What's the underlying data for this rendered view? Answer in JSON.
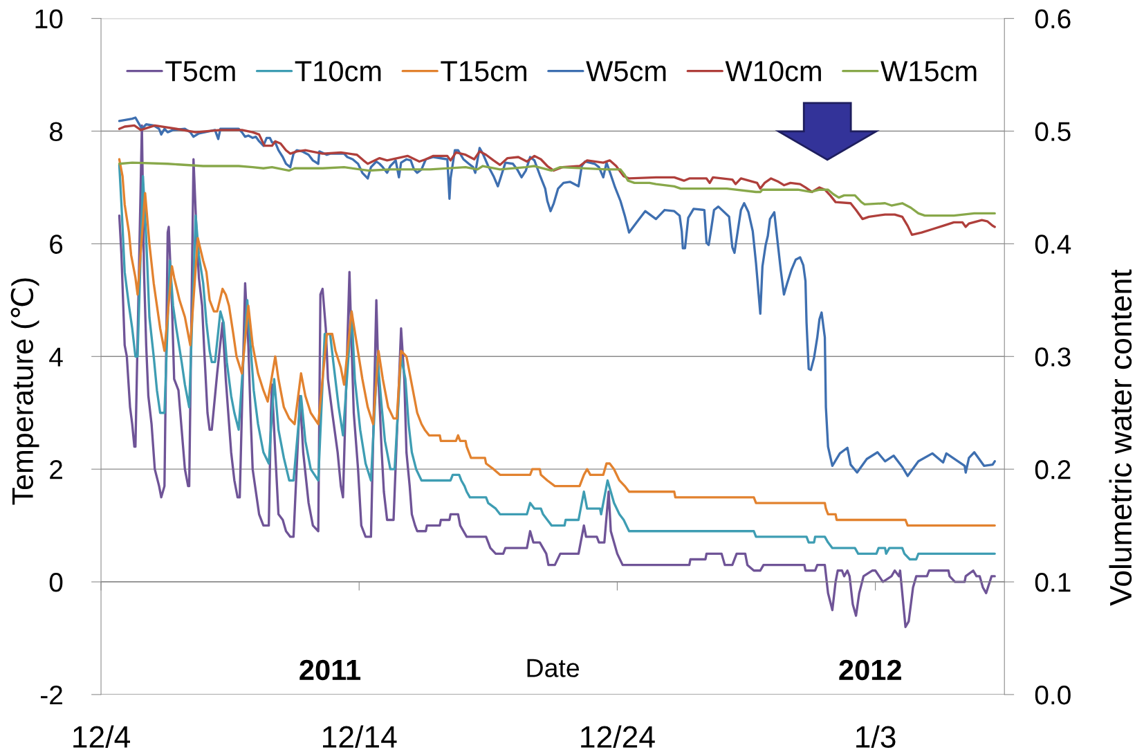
{
  "chart_data": {
    "type": "line",
    "xlabel": "Date",
    "ylabel": "Temperature (℃)",
    "y2label": "Volumetric water content",
    "xlim": [
      "2011-12-04",
      "2012-01-08"
    ],
    "xticks": [
      {
        "value": "2011-12-04",
        "label": "12/4"
      },
      {
        "value": "2011-12-14",
        "label": "12/14"
      },
      {
        "value": "2011-12-24",
        "label": "12/24"
      },
      {
        "value": "2012-01-03",
        "label": "1/3"
      }
    ],
    "ylim": [
      -2,
      10
    ],
    "yticks": [
      -2,
      0,
      2,
      4,
      6,
      8,
      10
    ],
    "y2lim": [
      0,
      0.6
    ],
    "y2ticks": [
      {
        "value": 0,
        "label": "0.0"
      },
      0.1,
      0.2,
      0.3,
      0.4,
      0.5,
      0.6
    ],
    "grid": "y",
    "legend": "top",
    "line_style": "solid",
    "annotations": [
      "2011",
      "2012"
    ],
    "series": [
      {
        "name": "T5cm",
        "color": "#6f5497",
        "x": [
          "2011-12-04T17:00",
          "2011-12-04T19:00",
          "2011-12-04T22:00",
          "2011-12-05T00:00",
          "2011-12-05T03:00",
          "2011-12-05T05:00",
          "2011-12-05T07:00",
          "2011-12-05T08:00",
          "2011-12-05T14:00",
          "2011-12-05T16:00",
          "2011-12-05T18:00",
          "2011-12-05T20:00",
          "2011-12-05T23:00",
          "2011-12-06T02:00",
          "2011-12-06T06:00",
          "2011-12-06T08:00",
          "2011-12-06T11:00",
          "2011-12-06T14:00",
          "2011-12-06T15:00",
          "2011-12-06T18:00",
          "2011-12-06T20:00",
          "2011-12-07T00:00",
          "2011-12-07T03:00",
          "2011-12-07T06:00",
          "2011-12-07T09:00",
          "2011-12-07T10:00",
          "2011-12-07T14:00",
          "2011-12-07T17:00",
          "2011-12-07T19:00",
          "2011-12-07T22:00",
          "2011-12-08T00:00",
          "2011-12-08T03:00",
          "2011-12-08T05:00",
          "2011-12-08T07:00",
          "2011-12-08T12:00",
          "2011-12-08T17:00",
          "2011-12-08T20:00",
          "2011-12-09T01:00",
          "2011-12-09T04:00",
          "2011-12-09T07:00",
          "2011-12-09T09:00",
          "2011-12-09T14:00",
          "2011-12-09T17:00",
          "2011-12-09T19:00",
          "2011-12-09T21:00",
          "2011-12-10T00:00",
          "2011-12-10T03:00",
          "2011-12-10T07:00",
          "2011-12-10T12:00",
          "2011-12-10T14:00",
          "2011-12-10T15:00",
          "2011-12-10T18:00",
          "2011-12-10T21:00",
          "2011-12-11T01:00",
          "2011-12-11T04:00",
          "2011-12-11T08:00",
          "2011-12-11T11:00",
          "2011-12-11T17:00",
          "2011-12-11T20:00",
          "2011-12-12T01:00",
          "2011-12-12T05:00",
          "2011-12-12T10:00",
          "2011-12-12T12:00",
          "2011-12-12T14:00",
          "2011-12-12T17:00",
          "2011-12-12T19:00",
          "2011-12-12T23:00",
          "2011-12-13T04:00",
          "2011-12-13T07:00",
          "2011-12-13T09:00",
          "2011-12-13T15:00",
          "2011-12-13T17:00",
          "2011-12-13T19:00",
          "2011-12-13T23:00",
          "2011-12-14T02:00",
          "2011-12-14T06:00",
          "2011-12-14T11:00",
          "2011-12-14T16:00",
          "2011-12-14T18:00",
          "2011-12-14T21:00",
          "2011-12-14T23:00",
          "2011-12-15T02:00",
          "2011-12-15T08:00",
          "2011-12-15T15:00",
          "2011-12-15T18:00",
          "2011-12-15T20:00",
          "2011-12-15T23:00",
          "2011-12-16T01:00",
          "2011-12-16T04:00",
          "2011-12-16T06:00",
          "2011-12-16T14:00",
          "2011-12-16T15:00",
          "2011-12-17T03:00",
          "2011-12-17T04:00",
          "2011-12-17T12:00",
          "2011-12-17T13:00",
          "2011-12-17T20:00",
          "2011-12-17T22:00",
          "2011-12-18T04:00",
          "2011-12-18T22:00",
          "2011-12-19T02:00",
          "2011-12-19T07:00",
          "2011-12-19T14:00",
          "2011-12-19T16:00",
          "2011-12-20T12:00",
          "2011-12-20T15:00",
          "2011-12-20T18:00",
          "2011-12-21T00:00",
          "2011-12-21T06:00",
          "2011-12-21T08:00",
          "2011-12-21T14:00",
          "2011-12-21T19:00",
          "2011-12-22T12:00",
          "2011-12-22T17:00",
          "2011-12-22T19:00",
          "2011-12-23T05:00",
          "2011-12-23T07:00",
          "2011-12-23T12:00",
          "2011-12-23T16:00",
          "2011-12-23T18:00",
          "2011-12-24T00:00",
          "2011-12-24T05:00",
          "2011-12-26T19:00",
          "2011-12-26T20:00",
          "2011-12-27T10:00",
          "2011-12-27T11:00",
          "2011-12-28T01:00",
          "2011-12-28T04:00",
          "2011-12-28T11:00",
          "2011-12-28T15:00",
          "2011-12-28T23:00",
          "2011-12-29T01:00",
          "2011-12-29T07:00",
          "2011-12-29T13:00",
          "2011-12-29T16:00",
          "2011-12-31T06:00",
          "2011-12-31T07:00",
          "2011-12-31T16:00",
          "2011-12-31T18:00",
          "2012-01-01T01:00",
          "2012-01-01T04:00",
          "2012-01-01T08:00",
          "2012-01-01T11:00",
          "2012-01-01T13:00",
          "2012-01-01T17:00",
          "2012-01-01T19:00",
          "2012-01-01T22:00",
          "2012-01-02T00:00",
          "2012-01-02T03:00",
          "2012-01-02T06:00",
          "2012-01-02T09:00",
          "2012-01-02T13:00",
          "2012-01-02T21:00",
          "2012-01-03T00:00",
          "2012-01-03T07:00",
          "2012-01-03T15:00",
          "2012-01-03T18:00",
          "2012-01-03T22:00",
          "2012-01-03T23:00",
          "2012-01-04T01:00",
          "2012-01-04T04:00",
          "2012-01-04T07:00",
          "2012-01-04T11:00",
          "2012-01-04T14:00",
          "2012-01-05T00:00",
          "2012-01-05T02:00",
          "2012-01-05T20:00",
          "2012-01-05T21:00",
          "2012-01-06T02:00",
          "2012-01-06T11:00",
          "2012-01-06T12:00",
          "2012-01-06T19:00",
          "2012-01-06T22:00",
          "2012-01-07T01:00",
          "2012-01-07T04:00",
          "2012-01-07T07:00",
          "2012-01-07T12:00",
          "2012-01-07T15:00"
        ],
        "values": [
          6.5,
          5.8,
          4.2,
          4.0,
          3.1,
          2.8,
          2.4,
          2.4,
          8.1,
          5.5,
          4.2,
          3.3,
          2.8,
          2.0,
          1.7,
          1.5,
          1.7,
          6.2,
          6.3,
          4.9,
          3.6,
          3.4,
          2.7,
          2.0,
          1.7,
          1.7,
          7.5,
          6.1,
          5.4,
          4.9,
          4.1,
          3.0,
          2.7,
          2.7,
          3.7,
          4.6,
          3.6,
          2.3,
          1.8,
          1.5,
          1.5,
          5.3,
          4.2,
          3.0,
          2.0,
          1.6,
          1.2,
          1.0,
          1.0,
          3.0,
          3.5,
          2.3,
          1.2,
          1.1,
          0.9,
          0.8,
          0.8,
          3.3,
          2.3,
          1.4,
          1.0,
          0.9,
          5.1,
          5.2,
          4.5,
          3.6,
          3.0,
          2.3,
          1.7,
          1.5,
          5.5,
          4.2,
          3.0,
          2.0,
          1.0,
          0.8,
          0.8,
          5.0,
          3.6,
          2.3,
          1.6,
          1.1,
          1.1,
          4.5,
          3.6,
          2.3,
          1.7,
          1.2,
          1.0,
          0.9,
          0.9,
          1.0,
          1.0,
          1.1,
          1.1,
          1.2,
          1.2,
          1.0,
          0.8,
          0.8,
          0.6,
          0.5,
          0.5,
          0.6,
          0.6,
          0.9,
          0.7,
          0.7,
          0.5,
          0.3,
          0.3,
          0.5,
          0.5,
          1.0,
          0.8,
          0.8,
          0.7,
          0.7,
          1.6,
          0.9,
          0.5,
          0.3,
          0.3,
          0.4,
          0.4,
          0.5,
          0.5,
          0.3,
          0.3,
          0.5,
          0.5,
          0.3,
          0.2,
          0.2,
          0.3,
          0.3,
          0.2,
          0.2,
          0.3,
          0.3,
          -0.2,
          -0.5,
          0.0,
          0.2,
          0.2,
          0.1,
          0.2,
          0.1,
          -0.4,
          -0.6,
          -0.2,
          0.1,
          0.2,
          0.2,
          0.0,
          0.1,
          0.2,
          0.1,
          0.2,
          -0.2,
          -0.8,
          -0.7,
          -0.1,
          0.1,
          0.1,
          0.2,
          0.2,
          0.1,
          0.0,
          0.0,
          0.1,
          0.2,
          0.1,
          0.1,
          -0.1,
          -0.2,
          0.1,
          0.1
        ]
      },
      {
        "name": "T10cm",
        "color": "#3e9db3",
        "x": [
          "2011-12-04T17:00",
          "2011-12-04T19:00",
          "2011-12-04T22:00",
          "2011-12-05T02:00",
          "2011-12-05T05:00",
          "2011-12-05T08:00",
          "2011-12-05T10:00",
          "2011-12-05T15:00",
          "2011-12-05T18:00",
          "2011-12-05T21:00",
          "2011-12-06T01:00",
          "2011-12-06T04:00",
          "2011-12-06T07:00",
          "2011-12-06T11:00",
          "2011-12-06T16:00",
          "2011-12-06T19:00",
          "2011-12-06T22:00",
          "2011-12-07T03:00",
          "2011-12-07T06:00",
          "2011-12-07T10:00",
          "2011-12-07T16:00",
          "2011-12-07T19:00",
          "2011-12-07T23:00",
          "2011-12-08T02:00",
          "2011-12-08T05:00",
          "2011-12-08T07:00",
          "2011-12-08T10:00",
          "2011-12-08T15:00",
          "2011-12-08T18:00",
          "2011-12-08T21:00",
          "2011-12-09T01:00",
          "2011-12-09T04:00",
          "2011-12-09T08:00",
          "2011-12-09T16:00",
          "2011-12-09T19:00",
          "2011-12-09T22:00",
          "2011-12-10T02:00",
          "2011-12-10T07:00",
          "2011-12-10T12:00",
          "2011-12-10T17:00",
          "2011-12-10T21:00",
          "2011-12-11T02:00",
          "2011-12-11T07:00",
          "2011-12-11T11:00",
          "2011-12-11T18:00",
          "2011-12-11T22:00",
          "2011-12-12T03:00",
          "2011-12-12T10:00",
          "2011-12-12T16:00",
          "2011-12-12T21:00",
          "2011-12-13T00:00",
          "2011-12-13T05:00",
          "2011-12-13T09:00",
          "2011-12-13T17:00",
          "2011-12-13T20:00",
          "2011-12-14T01:00",
          "2011-12-14T06:00",
          "2011-12-14T11:00",
          "2011-12-14T17:00",
          "2011-12-14T21:00",
          "2011-12-15T00:00",
          "2011-12-15T05:00",
          "2011-12-15T09:00",
          "2011-12-15T15:00",
          "2011-12-15T19:00",
          "2011-12-15T22:00",
          "2011-12-16T01:00",
          "2011-12-16T05:00",
          "2011-12-16T10:00",
          "2011-12-17T13:00",
          "2011-12-17T15:00",
          "2011-12-17T21:00",
          "2011-12-17T23:00",
          "2011-12-18T02:00",
          "2011-12-18T04:00",
          "2011-12-18T07:00",
          "2011-12-18T22:00",
          "2011-12-19T00:00",
          "2011-12-19T07:00",
          "2011-12-19T11:00",
          "2011-12-20T12:00",
          "2011-12-20T15:00",
          "2011-12-20T19:00",
          "2011-12-21T01:00",
          "2011-12-21T03:00",
          "2011-12-21T07:00",
          "2011-12-21T11:00",
          "2011-12-21T23:00",
          "2011-12-22T00:00",
          "2011-12-22T12:00",
          "2011-12-22T17:00",
          "2011-12-22T20:00",
          "2011-12-23T08:00",
          "2011-12-23T09:00",
          "2011-12-23T15:00",
          "2011-12-23T18:00",
          "2011-12-23T21:00",
          "2011-12-24T02:00",
          "2011-12-24T06:00",
          "2011-12-24T11:00",
          "2011-12-29T07:00",
          "2011-12-29T09:00",
          "2011-12-31T08:00",
          "2011-12-31T10:00",
          "2011-12-31T15:00",
          "2011-12-31T16:00",
          "2012-01-01T01:00",
          "2012-01-01T04:00",
          "2012-01-01T08:00",
          "2012-01-02T05:00",
          "2012-01-02T08:00",
          "2012-01-03T01:00",
          "2012-01-03T03:00",
          "2012-01-03T09:00",
          "2012-01-03T10:00",
          "2012-01-03T13:00",
          "2012-01-04T01:00",
          "2012-01-04T03:00",
          "2012-01-04T08:00",
          "2012-01-04T14:00",
          "2012-01-04T16:00",
          "2012-01-07T15:00"
        ],
        "values": [
          7.4,
          6.7,
          5.5,
          4.9,
          4.5,
          4.0,
          4.0,
          7.2,
          6.1,
          4.7,
          4.0,
          3.4,
          3.0,
          3.0,
          5.7,
          4.9,
          4.5,
          3.9,
          3.5,
          3.1,
          6.5,
          5.8,
          5.3,
          4.6,
          4.1,
          3.9,
          3.9,
          4.8,
          4.6,
          3.9,
          3.3,
          3.0,
          2.7,
          5.0,
          4.2,
          3.4,
          2.8,
          2.3,
          2.1,
          3.6,
          2.7,
          2.2,
          1.8,
          1.8,
          3.3,
          2.5,
          2.0,
          1.8,
          4.4,
          4.4,
          3.9,
          3.1,
          2.6,
          4.8,
          3.6,
          2.7,
          2.1,
          1.8,
          4.0,
          3.1,
          2.5,
          2.0,
          2.0,
          4.0,
          3.6,
          2.8,
          2.3,
          2.0,
          1.8,
          1.8,
          1.9,
          1.9,
          1.8,
          1.7,
          1.6,
          1.5,
          1.5,
          1.4,
          1.3,
          1.2,
          1.2,
          1.4,
          1.3,
          1.3,
          1.2,
          1.1,
          1.0,
          1.0,
          1.1,
          1.1,
          1.6,
          1.3,
          1.3,
          1.2,
          1.8,
          1.6,
          1.4,
          1.2,
          1.1,
          0.9,
          0.9,
          0.8,
          0.8,
          0.7,
          0.7,
          0.8,
          0.8,
          0.7,
          0.6,
          0.6,
          0.5,
          0.5,
          0.6,
          0.6,
          0.5,
          0.6,
          0.6,
          0.5,
          0.4,
          0.4,
          0.5,
          0.5
        ]
      },
      {
        "name": "T15cm",
        "color": "#e2822f",
        "x": [
          "2011-12-04T17:00",
          "2011-12-04T20:00",
          "2011-12-04T22:00",
          "2011-12-05T02:00",
          "2011-12-05T04:00",
          "2011-12-05T08:00",
          "2011-12-05T10:00",
          "2011-12-05T17:00",
          "2011-12-05T21:00",
          "2011-12-06T01:00",
          "2011-12-06T04:00",
          "2011-12-06T07:00",
          "2011-12-06T11:00",
          "2011-12-06T18:00",
          "2011-12-06T20:00",
          "2011-12-07T01:00",
          "2011-12-07T06:00",
          "2011-12-07T10:00",
          "2011-12-07T11:00",
          "2011-12-07T18:00",
          "2011-12-07T23:00",
          "2011-12-08T02:00",
          "2011-12-08T05:00",
          "2011-12-08T09:00",
          "2011-12-08T12:00",
          "2011-12-08T17:00",
          "2011-12-08T20:00",
          "2011-12-08T23:00",
          "2011-12-09T03:00",
          "2011-12-09T06:00",
          "2011-12-09T11:00",
          "2011-12-09T17:00",
          "2011-12-09T21:00",
          "2011-12-10T02:00",
          "2011-12-10T07:00",
          "2011-12-10T11:00",
          "2011-12-10T18:00",
          "2011-12-10T21:00",
          "2011-12-11T02:00",
          "2011-12-11T07:00",
          "2011-12-11T12:00",
          "2011-12-11T18:00",
          "2011-12-11T22:00",
          "2011-12-12T03:00",
          "2011-12-12T10:00",
          "2011-12-12T18:00",
          "2011-12-12T23:00",
          "2011-12-13T02:00",
          "2011-12-13T07:00",
          "2011-12-13T10:00",
          "2011-12-13T17:00",
          "2011-12-13T22:00",
          "2011-12-14T03:00",
          "2011-12-14T08:00",
          "2011-12-14T13:00",
          "2011-12-14T18:00",
          "2011-12-14T22:00",
          "2011-12-15T03:00",
          "2011-12-15T08:00",
          "2011-12-15T11:00",
          "2011-12-15T15:00",
          "2011-12-15T20:00",
          "2011-12-16T00:00",
          "2011-12-16T03:00",
          "2011-12-16T06:00",
          "2011-12-16T10:00",
          "2011-12-16T13:00",
          "2011-12-16T17:00",
          "2011-12-17T03:00",
          "2011-12-17T04:00",
          "2011-12-17T18:00",
          "2011-12-17T20:00",
          "2011-12-17T22:00",
          "2011-12-18T03:00",
          "2011-12-18T04:00",
          "2011-12-18T08:00",
          "2011-12-18T21:00",
          "2011-12-18T22:00",
          "2011-12-19T05:00",
          "2011-12-19T11:00",
          "2011-12-20T15:00",
          "2011-12-20T17:00",
          "2011-12-21T00:00",
          "2011-12-21T01:00",
          "2011-12-21T07:00",
          "2011-12-21T14:00",
          "2011-12-22T13:00",
          "2011-12-22T17:00",
          "2011-12-22T20:00",
          "2011-12-22T23:00",
          "2011-12-23T11:00",
          "2011-12-23T14:00",
          "2011-12-23T17:00",
          "2011-12-23T21:00",
          "2011-12-24T02:00",
          "2011-12-24T07:00",
          "2011-12-24T11:00",
          "2011-12-26T05:00",
          "2011-12-26T06:00",
          "2011-12-29T07:00",
          "2011-12-29T09:00",
          "2012-01-01T01:00",
          "2012-01-01T02:00",
          "2012-01-01T04:00",
          "2012-01-01T11:00",
          "2012-01-01T12:00",
          "2012-01-04T04:00",
          "2012-01-04T06:00",
          "2012-01-07T15:00"
        ],
        "values": [
          7.5,
          7.2,
          6.7,
          6.2,
          5.8,
          5.4,
          5.1,
          6.9,
          6.0,
          5.3,
          4.9,
          4.5,
          4.1,
          5.6,
          5.4,
          5.0,
          4.7,
          4.3,
          4.2,
          6.1,
          5.7,
          5.5,
          5.0,
          4.8,
          4.8,
          5.2,
          5.1,
          4.9,
          4.4,
          4.0,
          3.7,
          4.9,
          4.2,
          3.7,
          3.4,
          3.2,
          4.0,
          3.6,
          3.1,
          2.9,
          2.8,
          3.7,
          3.3,
          3.0,
          2.8,
          4.4,
          4.4,
          4.1,
          3.8,
          3.5,
          4.8,
          4.2,
          3.6,
          3.1,
          2.8,
          4.1,
          3.6,
          3.1,
          2.9,
          2.9,
          4.1,
          4.0,
          3.6,
          3.3,
          3.0,
          2.8,
          2.7,
          2.6,
          2.6,
          2.5,
          2.5,
          2.6,
          2.5,
          2.5,
          2.4,
          2.2,
          2.2,
          2.1,
          2.0,
          1.9,
          1.9,
          2.0,
          2.0,
          1.9,
          1.8,
          1.7,
          1.7,
          1.9,
          2.0,
          1.9,
          1.9,
          2.1,
          2.1,
          2.0,
          1.8,
          1.7,
          1.6,
          1.6,
          1.5,
          1.5,
          1.4,
          1.4,
          1.3,
          1.2,
          1.2,
          1.1,
          1.1,
          1.0,
          1.0
        ]
      },
      {
        "name": "W5cm",
        "color": "#3e6fb0",
        "axis": "y2",
        "x": [
          "2011-12-04T17:00",
          "2011-12-05T05:00",
          "2011-12-05T08:00",
          "2011-12-05T11:00",
          "2011-12-05T14:00",
          "2011-12-05T18:00",
          "2011-12-06T01:00",
          "2011-12-06T06:00",
          "2011-12-06T08:00",
          "2011-12-06T11:00",
          "2011-12-06T14:00",
          "2011-12-06T19:00",
          "2011-12-07T06:00",
          "2011-12-07T11:00",
          "2011-12-07T14:00",
          "2011-12-07T19:00",
          "2011-12-08T05:00",
          "2011-12-08T10:00",
          "2011-12-08T13:00",
          "2011-12-08T15:00",
          "2011-12-08T22:00",
          "2011-12-09T08:00",
          "2011-12-09T11:00",
          "2011-12-09T14:00",
          "2011-12-09T17:00",
          "2011-12-09T21:00",
          "2011-12-10T00:00",
          "2011-12-10T03:00",
          "2011-12-10T07:00",
          "2011-12-10T10:00",
          "2011-12-10T13:00",
          "2011-12-10T15:00",
          "2011-12-10T18:00",
          "2011-12-10T21:00",
          "2011-12-11T01:00",
          "2011-12-11T04:00",
          "2011-12-11T08:00",
          "2011-12-11T11:00",
          "2011-12-11T14:00",
          "2011-12-11T19:00",
          "2011-12-12T01:00",
          "2011-12-12T05:00",
          "2011-12-12T10:00",
          "2011-12-12T11:00",
          "2011-12-12T18:00",
          "2011-12-12T21:00",
          "2011-12-13T10:00",
          "2011-12-13T13:00",
          "2011-12-13T18:00",
          "2011-12-13T23:00",
          "2011-12-14T03:00",
          "2011-12-14T08:00",
          "2011-12-14T11:00",
          "2011-12-14T16:00",
          "2011-12-14T19:00",
          "2011-12-14T22:00",
          "2011-12-15T02:00",
          "2011-12-15T05:00",
          "2011-12-15T10:00",
          "2011-12-15T13:00",
          "2011-12-15T15:00",
          "2011-12-15T20:00",
          "2011-12-16T00:00",
          "2011-12-16T03:00",
          "2011-12-16T06:00",
          "2011-12-16T10:00",
          "2011-12-16T14:00",
          "2011-12-16T21:00",
          "2011-12-17T10:00",
          "2011-12-17T12:00",
          "2011-12-17T13:00",
          "2011-12-17T17:00",
          "2011-12-17T20:00",
          "2011-12-18T01:00",
          "2011-12-18T06:00",
          "2011-12-18T10:00",
          "2011-12-18T12:00",
          "2011-12-18T16:00",
          "2011-12-18T19:00",
          "2011-12-19T00:00",
          "2011-12-19T05:00",
          "2011-12-19T09:00",
          "2011-12-19T13:00",
          "2011-12-19T16:00",
          "2011-12-19T23:00",
          "2011-12-20T03:00",
          "2011-12-20T07:00",
          "2011-12-20T11:00",
          "2011-12-20T15:00",
          "2011-12-20T19:00",
          "2011-12-21T00:00",
          "2011-12-21T05:00",
          "2011-12-21T07:00",
          "2011-12-21T10:00",
          "2011-12-21T13:00",
          "2011-12-21T17:00",
          "2011-12-21T22:00",
          "2011-12-22T04:00",
          "2011-12-22T12:00",
          "2011-12-22T15:00",
          "2011-12-22T18:00",
          "2011-12-23T03:00",
          "2011-12-23T07:00",
          "2011-12-23T11:00",
          "2011-12-23T14:00",
          "2011-12-23T17:00",
          "2011-12-23T22:00",
          "2011-12-24T03:00",
          "2011-12-24T07:00",
          "2011-12-24T11:00",
          "2011-12-24T18:00",
          "2011-12-25T02:00",
          "2011-12-25T12:00",
          "2011-12-25T20:00",
          "2011-12-26T05:00",
          "2011-12-26T10:00",
          "2011-12-26T12:00",
          "2011-12-26T13:00",
          "2011-12-26T15:00",
          "2011-12-26T18:00",
          "2011-12-26T23:00",
          "2011-12-27T09:00",
          "2011-12-27T11:00",
          "2011-12-27T13:00",
          "2011-12-27T15:00",
          "2011-12-27T18:00",
          "2011-12-27T22:00",
          "2011-12-28T08:00",
          "2011-12-28T11:00",
          "2011-12-28T13:00",
          "2011-12-28T19:00",
          "2011-12-28T22:00",
          "2011-12-29T02:00",
          "2011-12-29T06:00",
          "2011-12-29T09:00",
          "2011-12-29T13:00",
          "2011-12-29T15:00",
          "2011-12-29T18:00",
          "2011-12-29T20:00",
          "2011-12-29T22:00",
          "2011-12-30T02:00",
          "2011-12-30T04:00",
          "2011-12-30T08:00",
          "2011-12-30T11:00",
          "2011-12-30T14:00",
          "2011-12-30T18:00",
          "2011-12-30T22:00",
          "2011-12-31T02:00",
          "2011-12-31T05:00",
          "2011-12-31T07:00",
          "2011-12-31T08:00",
          "2011-12-31T10:00",
          "2011-12-31T12:00",
          "2011-12-31T15:00",
          "2011-12-31T18:00",
          "2011-12-31T20:00",
          "2011-12-31T22:00",
          "2012-01-01T01:00",
          "2012-01-01T02:00",
          "2012-01-01T04:00",
          "2012-01-01T08:00",
          "2012-01-01T15:00",
          "2012-01-01T22:00",
          "2012-01-02T01:00",
          "2012-01-02T07:00",
          "2012-01-02T16:00",
          "2012-01-03T02:00",
          "2012-01-03T09:00",
          "2012-01-03T17:00",
          "2012-01-04T01:00",
          "2012-01-04T06:00",
          "2012-01-04T16:00",
          "2012-01-05T05:00",
          "2012-01-05T15:00",
          "2012-01-05T18:00",
          "2012-01-06T11:00",
          "2012-01-06T12:00",
          "2012-01-06T15:00",
          "2012-01-06T20:00",
          "2012-01-07T05:00",
          "2012-01-07T13:00",
          "2012-01-07T15:00"
        ],
        "values": [
          0.509,
          0.511,
          0.512,
          0.507,
          0.502,
          0.506,
          0.505,
          0.502,
          0.497,
          0.502,
          0.499,
          0.501,
          0.502,
          0.499,
          0.495,
          0.498,
          0.5,
          0.501,
          0.493,
          0.502,
          0.502,
          0.502,
          0.499,
          0.495,
          0.496,
          0.494,
          0.495,
          0.491,
          0.487,
          0.494,
          0.494,
          0.49,
          0.49,
          0.483,
          0.477,
          0.471,
          0.468,
          0.48,
          0.483,
          0.482,
          0.479,
          0.474,
          0.471,
          0.482,
          0.479,
          0.48,
          0.48,
          0.477,
          0.475,
          0.471,
          0.463,
          0.458,
          0.468,
          0.473,
          0.471,
          0.468,
          0.463,
          0.469,
          0.474,
          0.459,
          0.472,
          0.475,
          0.474,
          0.466,
          0.463,
          0.466,
          0.475,
          0.477,
          0.475,
          0.44,
          0.458,
          0.483,
          0.483,
          0.475,
          0.471,
          0.468,
          0.463,
          0.485,
          0.48,
          0.469,
          0.46,
          0.451,
          0.463,
          0.472,
          0.471,
          0.466,
          0.459,
          0.465,
          0.477,
          0.474,
          0.461,
          0.449,
          0.438,
          0.429,
          0.436,
          0.449,
          0.454,
          0.455,
          0.451,
          0.469,
          0.473,
          0.471,
          0.468,
          0.459,
          0.472,
          0.464,
          0.45,
          0.438,
          0.425,
          0.41,
          0.419,
          0.429,
          0.422,
          0.43,
          0.429,
          0.425,
          0.411,
          0.396,
          0.396,
          0.423,
          0.431,
          0.43,
          0.401,
          0.399,
          0.411,
          0.43,
          0.433,
          0.424,
          0.397,
          0.392,
          0.43,
          0.436,
          0.428,
          0.411,
          0.383,
          0.338,
          0.38,
          0.399,
          0.407,
          0.422,
          0.428,
          0.411,
          0.377,
          0.355,
          0.365,
          0.377,
          0.386,
          0.388,
          0.381,
          0.367,
          0.33,
          0.289,
          0.288,
          0.299,
          0.317,
          0.333,
          0.339,
          0.317,
          0.255,
          0.22,
          0.203,
          0.214,
          0.219,
          0.204,
          0.197,
          0.209,
          0.215,
          0.207,
          0.212,
          0.202,
          0.194,
          0.207,
          0.214,
          0.206,
          0.214,
          0.203,
          0.197,
          0.21,
          0.215,
          0.203,
          0.204,
          0.207
        ]
      },
      {
        "name": "W10cm",
        "color": "#af3f3b",
        "axis": "y2",
        "x": [
          "2011-12-04T17:00",
          "2011-12-04T22:00",
          "2011-12-05T07:00",
          "2011-12-05T13:00",
          "2011-12-06T02:00",
          "2011-12-06T22:00",
          "2011-12-07T16:00",
          "2011-12-08T15:00",
          "2011-12-09T11:00",
          "2011-12-09T21:00",
          "2011-12-10T03:00",
          "2011-12-10T08:00",
          "2011-12-10T15:00",
          "2011-12-10T18:00",
          "2011-12-10T23:00",
          "2011-12-11T04:00",
          "2011-12-11T08:00",
          "2011-12-11T14:00",
          "2011-12-11T22:00",
          "2011-12-12T14:00",
          "2011-12-13T07:00",
          "2011-12-13T22:00",
          "2011-12-14T04:00",
          "2011-12-14T08:00",
          "2011-12-14T19:00",
          "2011-12-15T02:00",
          "2011-12-15T21:00",
          "2011-12-16T08:00",
          "2011-12-16T14:00",
          "2011-12-16T21:00",
          "2011-12-17T10:00",
          "2011-12-17T13:00",
          "2011-12-17T18:00",
          "2011-12-18T03:00",
          "2011-12-18T11:00",
          "2011-12-18T16:00",
          "2011-12-18T22:00",
          "2011-12-19T05:00",
          "2011-12-19T11:00",
          "2011-12-19T18:00",
          "2011-12-20T04:00",
          "2011-12-20T12:00",
          "2011-12-20T19:00",
          "2011-12-21T01:00",
          "2011-12-21T07:00",
          "2011-12-21T13:00",
          "2011-12-21T21:00",
          "2011-12-22T13:00",
          "2011-12-22T20:00",
          "2011-12-23T11:00",
          "2011-12-23T17:00",
          "2011-12-23T23:00",
          "2011-12-24T06:00",
          "2011-12-24T11:00",
          "2011-12-25T12:00",
          "2011-12-26T05:00",
          "2011-12-26T14:00",
          "2011-12-26T19:00",
          "2011-12-27T11:00",
          "2011-12-27T14:00",
          "2011-12-27T17:00",
          "2011-12-28T11:00",
          "2011-12-28T14:00",
          "2011-12-28T19:00",
          "2011-12-29T10:00",
          "2011-12-29T13:00",
          "2011-12-29T17:00",
          "2011-12-29T23:00",
          "2011-12-30T06:00",
          "2011-12-30T11:00",
          "2011-12-30T17:00",
          "2011-12-31T02:00",
          "2011-12-31T07:00",
          "2011-12-31T13:00",
          "2011-12-31T20:00",
          "2012-01-01T01:00",
          "2012-01-01T06:00",
          "2012-01-01T11:00",
          "2012-01-02T01:00",
          "2012-01-02T06:00",
          "2012-01-02T12:00",
          "2012-01-02T18:00",
          "2012-01-03T09:00",
          "2012-01-03T18:00",
          "2012-01-04T01:00",
          "2012-01-04T06:00",
          "2012-01-04T10:00",
          "2012-01-04T19:00",
          "2012-01-05T05:00",
          "2012-01-05T15:00",
          "2012-01-06T01:00",
          "2012-01-06T09:00",
          "2012-01-06T12:00",
          "2012-01-06T15:00",
          "2012-01-07T03:00",
          "2012-01-07T08:00",
          "2012-01-07T13:00",
          "2012-01-07T15:00"
        ],
        "values": [
          0.502,
          0.504,
          0.505,
          0.501,
          0.505,
          0.502,
          0.499,
          0.501,
          0.501,
          0.499,
          0.497,
          0.487,
          0.487,
          0.491,
          0.489,
          0.483,
          0.48,
          0.482,
          0.483,
          0.48,
          0.481,
          0.479,
          0.474,
          0.471,
          0.476,
          0.474,
          0.478,
          0.473,
          0.475,
          0.478,
          0.478,
          0.474,
          0.481,
          0.479,
          0.475,
          0.482,
          0.479,
          0.474,
          0.47,
          0.476,
          0.477,
          0.473,
          0.478,
          0.475,
          0.469,
          0.465,
          0.468,
          0.469,
          0.474,
          0.472,
          0.474,
          0.469,
          0.46,
          0.458,
          0.459,
          0.459,
          0.456,
          0.458,
          0.458,
          0.454,
          0.459,
          0.457,
          0.453,
          0.458,
          0.454,
          0.449,
          0.454,
          0.458,
          0.455,
          0.452,
          0.454,
          0.453,
          0.45,
          0.446,
          0.45,
          0.448,
          0.443,
          0.437,
          0.436,
          0.43,
          0.422,
          0.424,
          0.426,
          0.426,
          0.424,
          0.416,
          0.408,
          0.41,
          0.413,
          0.416,
          0.419,
          0.419,
          0.415,
          0.418,
          0.421,
          0.42,
          0.416,
          0.415
        ]
      },
      {
        "name": "W15cm",
        "color": "#88a84a",
        "axis": "y2",
        "x": [
          "2011-12-04T17:00",
          "2011-12-05T05:00",
          "2011-12-06T14:00",
          "2011-12-07T23:00",
          "2011-12-09T08:00",
          "2011-12-09T21:00",
          "2011-12-10T07:00",
          "2011-12-10T15:00",
          "2011-12-11T07:00",
          "2011-12-11T12:00",
          "2011-12-12T14:00",
          "2011-12-13T10:00",
          "2011-12-14T09:00",
          "2011-12-15T05:00",
          "2011-12-16T18:00",
          "2011-12-18T03:00",
          "2011-12-18T14:00",
          "2011-12-18T19:00",
          "2011-12-19T11:00",
          "2011-12-20T11:00",
          "2011-12-20T19:00",
          "2011-12-21T11:00",
          "2011-12-21T19:00",
          "2011-12-23T14:00",
          "2011-12-24T03:00",
          "2011-12-24T07:00",
          "2011-12-24T10:00",
          "2011-12-24T16:00",
          "2011-12-25T06:00",
          "2011-12-25T12:00",
          "2011-12-26T05:00",
          "2011-12-26T11:00",
          "2011-12-28T06:00",
          "2011-12-29T09:00",
          "2011-12-29T13:00",
          "2011-12-29T15:00",
          "2011-12-31T00:00",
          "2011-12-31T12:00",
          "2011-12-31T20:00",
          "2012-01-01T04:00",
          "2012-01-01T09:00",
          "2012-01-01T14:00",
          "2012-01-01T19:00",
          "2012-01-02T05:00",
          "2012-01-02T11:00",
          "2012-01-02T14:00",
          "2012-01-03T09:00",
          "2012-01-03T15:00",
          "2012-01-04T01:00",
          "2012-01-04T09:00",
          "2012-01-04T16:00",
          "2012-01-04T22:00",
          "2012-01-06T01:00",
          "2012-01-06T20:00",
          "2012-01-07T15:00"
        ],
        "values": [
          0.471,
          0.472,
          0.471,
          0.469,
          0.469,
          0.468,
          0.467,
          0.468,
          0.465,
          0.467,
          0.467,
          0.468,
          0.465,
          0.466,
          0.466,
          0.468,
          0.466,
          0.469,
          0.466,
          0.468,
          0.469,
          0.465,
          0.468,
          0.466,
          0.466,
          0.461,
          0.456,
          0.454,
          0.454,
          0.453,
          0.451,
          0.449,
          0.449,
          0.446,
          0.446,
          0.448,
          0.448,
          0.446,
          0.448,
          0.448,
          0.444,
          0.441,
          0.443,
          0.443,
          0.437,
          0.435,
          0.436,
          0.434,
          0.436,
          0.432,
          0.427,
          0.425,
          0.425,
          0.427,
          0.427
        ]
      }
    ]
  }
}
